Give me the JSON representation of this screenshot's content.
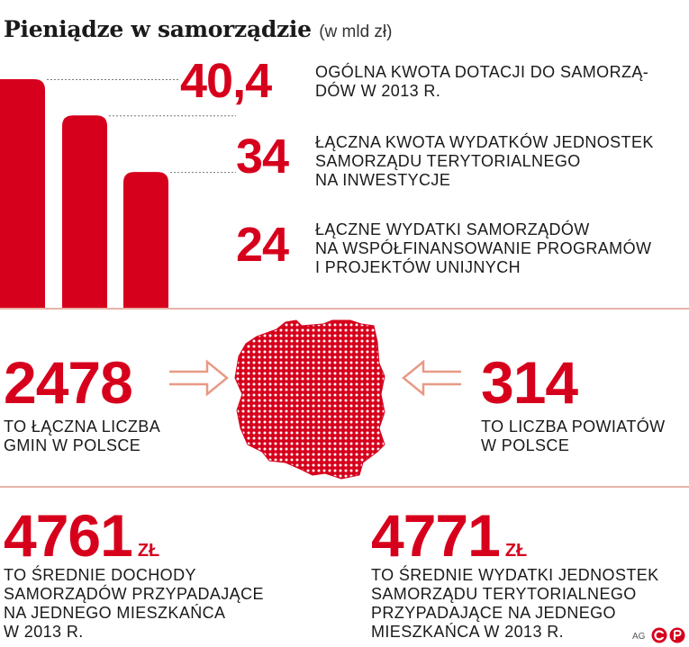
{
  "header": {
    "title": "Pieniądze w samorządzie",
    "unit": "(w mld zł)"
  },
  "colors": {
    "accent": "#d6001c",
    "divider": "#e8b3a8",
    "text": "#1a1a1a"
  },
  "chart_data": {
    "type": "bar",
    "categories": [
      "OGÓLNA KWOTA DOTACJI DO SAMORZĄDÓW W 2013 R.",
      "ŁĄCZNA KWOTA WYDATKÓW JEDNOSTEK SAMORZĄDU TERYTORIALNEGO NA INWESTYCJE",
      "ŁĄCZNE WYDATKI SAMORZĄDÓW NA WSPÓŁFINANSOWANIE PROGRAMÓW I PROJEKTÓW UNIJNYCH"
    ],
    "values": [
      40.4,
      34,
      24
    ],
    "labels": [
      "40,4",
      "34",
      "24"
    ],
    "title": "Pieniądze w samorządzie",
    "unit": "(w mld zł)",
    "ylim": [
      0,
      40.4
    ]
  },
  "stats": {
    "s1": {
      "value": "40,4",
      "desc1": "OGÓLNA KWOTA DOTACJI DO SAMORZĄ-",
      "desc2": "DÓW W 2013 R."
    },
    "s2": {
      "value": "34",
      "desc1": "ŁĄCZNA KWOTA WYDATKÓW JEDNOSTEK",
      "desc2": "SAMORZĄDU TERYTORIALNEGO",
      "desc3": "NA INWESTYCJE"
    },
    "s3": {
      "value": "24",
      "desc1": "ŁĄCZNE WYDATKI SAMORZĄDÓW",
      "desc2": "NA WSPÓŁFINANSOWANIE PROGRAMÓW",
      "desc3": "I PROJEKTÓW UNIJNYCH"
    }
  },
  "middle": {
    "gminy": {
      "value": "2478",
      "desc1": "TO ŁĄCZNA LICZBA",
      "desc2": "GMIN W POLSCE"
    },
    "powiaty": {
      "value": "314",
      "desc1": "TO LICZBA POWIATÓW",
      "desc2": "W POLSCE"
    }
  },
  "bottom": {
    "dochody": {
      "value": "4761",
      "currency": "ZŁ",
      "desc1": "TO ŚREDNIE DOCHODY",
      "desc2": "SAMORZĄDÓW PRZYPADAJĄCE",
      "desc3": "NA JEDNEGO MIESZKAŃCA",
      "desc4": "W 2013 R."
    },
    "wydatki": {
      "value": "4771",
      "currency": "ZŁ",
      "desc1": "TO ŚREDNIE WYDATKI JEDNOSTEK",
      "desc2": "SAMORZĄDU TERYTORIALNEGO",
      "desc3": "PRZYPADAJĄCE NA JEDNEGO",
      "desc4": "MIESZKAŃCA W 2013 R."
    }
  },
  "footer": {
    "author": "AG"
  },
  "icons": {
    "logo": "cp-logo-icon",
    "map": "poland-map-icon",
    "arrow": "arrow-icon"
  }
}
